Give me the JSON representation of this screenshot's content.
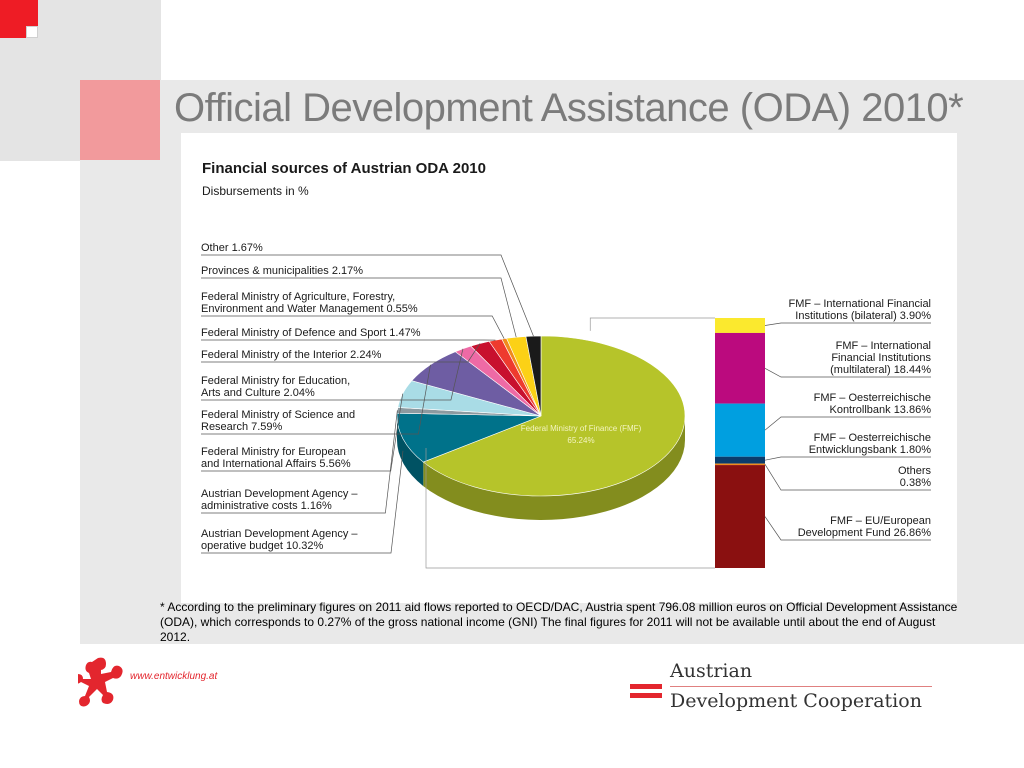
{
  "slide": {
    "title": "Official Development Assistance (ODA) 2010*",
    "footnote": "* According to the preliminary figures on 2011 aid flows reported to OECD/DAC, Austria spent 796.08 million euros on Official Development Assistance (ODA), which corresponds to 0.27% of the gross national income (GNI)   The final figures for 2011 will not be available until about the end of August 2012."
  },
  "chart_data": {
    "type": "pie",
    "title": "Financial sources of Austrian ODA 2010",
    "subtitle": "Disbursements in %",
    "unit": "%",
    "slices": [
      {
        "name": "Federal Ministry of Finance (FMF)",
        "value": 65.24,
        "label_lines": [
          "Federal Ministry of Finance (FMF)",
          "65.24%"
        ],
        "color": "#b6c42a"
      },
      {
        "name": "Austrian Development Agency – operative budget",
        "value": 10.32,
        "label_lines": [
          "Austrian Development Agency –",
          "operative budget 10.32%"
        ],
        "color": "#00728a"
      },
      {
        "name": "Austrian Development Agency – administrative costs",
        "value": 1.16,
        "label_lines": [
          "Austrian Development Agency –",
          "administrative costs 1.16%"
        ],
        "color": "#8c9aa0"
      },
      {
        "name": "Federal Ministry for European and International Affairs",
        "value": 5.56,
        "label_lines": [
          "Federal Ministry for European",
          "and International Affairs 5.56%"
        ],
        "color": "#a9dce6"
      },
      {
        "name": "Federal Ministry of Science and Research",
        "value": 7.59,
        "label_lines": [
          "Federal Ministry of Science and",
          "Research 7.59%"
        ],
        "color": "#6e5da3"
      },
      {
        "name": "Federal Ministry for Education, Arts and Culture",
        "value": 2.04,
        "label_lines": [
          "Federal Ministry for Education,",
          "Arts and Culture 2.04%"
        ],
        "color": "#ee6aa5"
      },
      {
        "name": "Federal Ministry of the Interior",
        "value": 2.24,
        "label_lines": [
          "Federal Ministry of the Interior 2.24%"
        ],
        "color": "#c8102e"
      },
      {
        "name": "Federal Ministry of Defence and Sport",
        "value": 1.47,
        "label_lines": [
          "Federal Ministry of Defence and Sport 1.47%"
        ],
        "color": "#ee3b2e"
      },
      {
        "name": "Federal Ministry of Agriculture, Forestry, Environment and Water Management",
        "value": 0.55,
        "label_lines": [
          "Federal Ministry of Agriculture, Forestry,",
          "Environment and Water Management 0.55%"
        ],
        "color": "#f08a1c"
      },
      {
        "name": "Provinces & municipalities",
        "value": 2.17,
        "label_lines": [
          "Provinces & municipalities 2.17%"
        ],
        "color": "#fcd116"
      },
      {
        "name": "Other",
        "value": 1.67,
        "label_lines": [
          "Other 1.67%"
        ],
        "color": "#1a1a1a"
      }
    ],
    "breakdown": {
      "parent": "Federal Ministry of Finance (FMF)",
      "segments": [
        {
          "name": "FMF – International Financial Institutions (bilateral)",
          "value": 3.9,
          "label_lines": [
            "FMF – International Financial",
            "Institutions (bilateral) 3.90%"
          ],
          "color": "#fbe92e"
        },
        {
          "name": "FMF – International Financial Institutions (multilateral)",
          "value": 18.44,
          "label_lines": [
            "FMF – International",
            "Financial Institutions",
            "(multilateral) 18.44%"
          ],
          "color": "#bb0a7e"
        },
        {
          "name": "FMF – Oesterreichische Kontrollbank",
          "value": 13.86,
          "label_lines": [
            "FMF – Oesterreichische",
            "Kontrollbank 13.86%"
          ],
          "color": "#009fe0"
        },
        {
          "name": "FMF – Oesterreichische Entwicklungsbank",
          "value": 1.8,
          "label_lines": [
            "FMF – Oesterreichische",
            "Entwicklungsbank 1.80%"
          ],
          "color": "#0b3c6c"
        },
        {
          "name": "Others",
          "value": 0.38,
          "label_lines": [
            "Others",
            "0.38%"
          ],
          "color": "#f08a1c"
        },
        {
          "name": "FMF – EU/European Development Fund",
          "value": 26.86,
          "label_lines": [
            "FMF – EU/European",
            "Development Fund 26.86%"
          ],
          "color": "#8a1010"
        }
      ]
    }
  },
  "footer": {
    "url": "www.entwicklung.at",
    "org_line1": "Austrian",
    "org_line2": "Development Cooperation",
    "logo_color": "#e3262e"
  }
}
